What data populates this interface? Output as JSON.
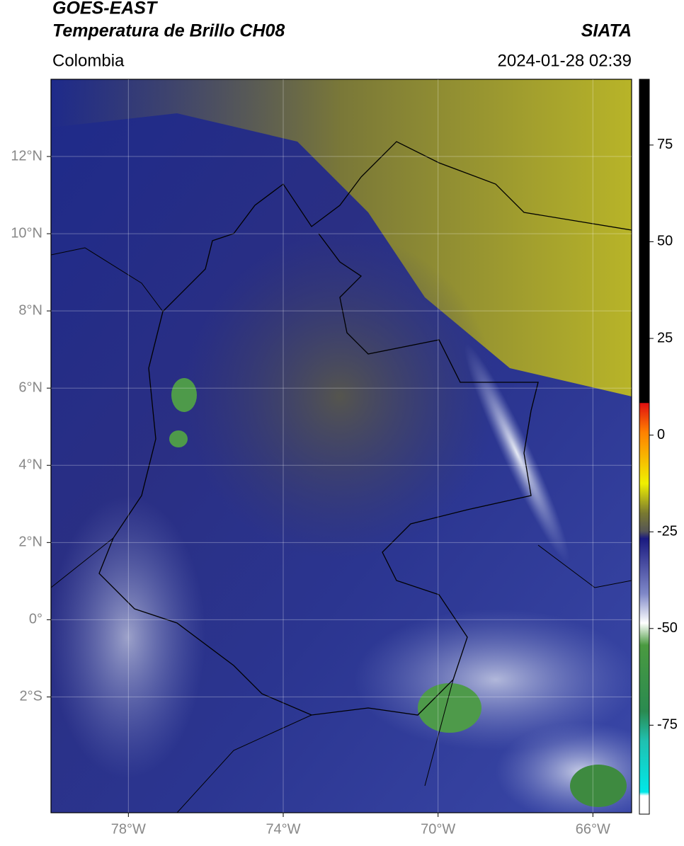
{
  "header": {
    "title_line1": "GOES-EAST",
    "title_line2": "Temperatura de Brillo CH08",
    "region": "Colombia",
    "source": "SIATA",
    "datetime": "2024-01-28 02:39"
  },
  "map": {
    "lonlim": [
      -80,
      -65
    ],
    "latlim": [
      -5,
      14
    ],
    "lat_ticks": [
      {
        "value": 12,
        "label": "12°N"
      },
      {
        "value": 10,
        "label": "10°N"
      },
      {
        "value": 8,
        "label": "8°N"
      },
      {
        "value": 6,
        "label": "6°N"
      },
      {
        "value": 4,
        "label": "4°N"
      },
      {
        "value": 2,
        "label": "2°N"
      },
      {
        "value": 0,
        "label": "0°"
      },
      {
        "value": -2,
        "label": "2°S"
      }
    ],
    "lon_ticks": [
      {
        "value": -78,
        "label": "78°W"
      },
      {
        "value": -74,
        "label": "74°W"
      },
      {
        "value": -70,
        "label": "70°W"
      },
      {
        "value": -66,
        "label": "66°W"
      }
    ]
  },
  "colorbar": {
    "lim": [
      -98,
      92
    ],
    "ticks": [
      75,
      50,
      25,
      0,
      -25,
      -50,
      -75
    ]
  }
}
